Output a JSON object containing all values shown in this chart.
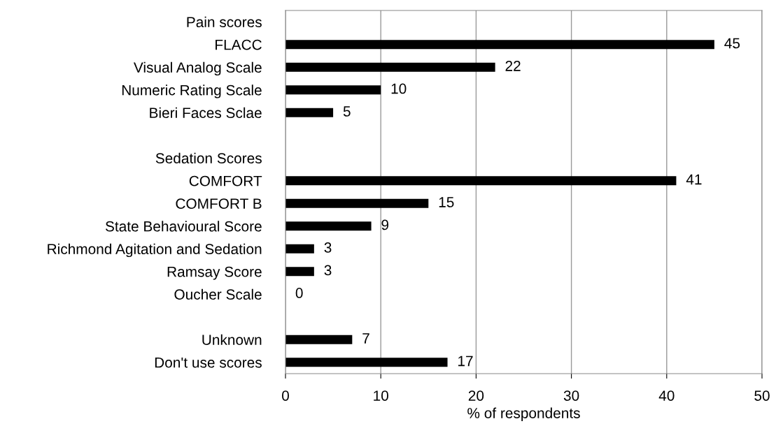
{
  "chart_data": {
    "type": "bar",
    "orientation": "horizontal",
    "xlabel": "% of respondents",
    "categories": [
      "Pain scores",
      "FLACC",
      "Visual Analog Scale",
      "Numeric Rating Scale",
      "Bieri Faces Sclae",
      null,
      "Sedation Scores",
      "COMFORT",
      "COMFORT B",
      "State Behavioural Score",
      "Richmond Agitation and Sedation",
      "Ramsay Score",
      "Oucher Scale",
      null,
      "Unknown",
      "Don't use scores"
    ],
    "values": [
      null,
      45,
      22,
      10,
      5,
      null,
      null,
      41,
      15,
      9,
      3,
      3,
      0,
      null,
      7,
      17
    ],
    "color": "#000000",
    "xlim": [
      0,
      50
    ],
    "xticks": [
      0,
      10,
      20,
      30,
      40,
      50
    ],
    "grid": "x",
    "data_labels": true,
    "legend": false
  }
}
